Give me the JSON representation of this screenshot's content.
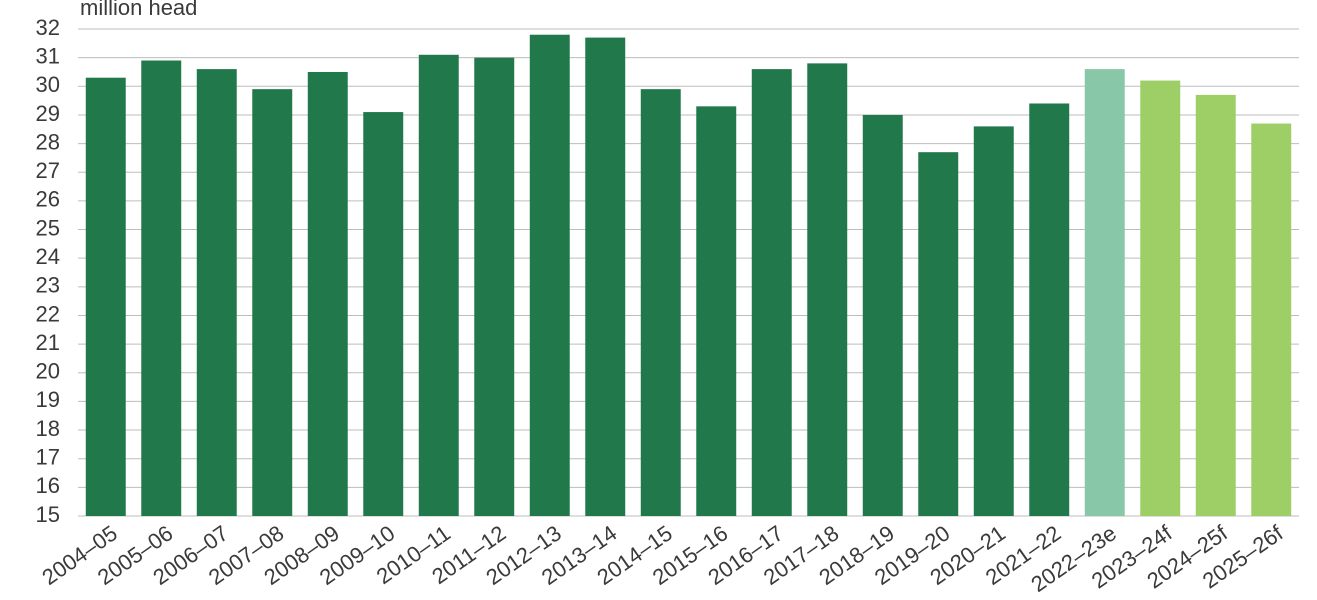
{
  "chart_data": {
    "type": "bar",
    "y_label": "million head",
    "categories": [
      "2004–05",
      "2005–06",
      "2006–07",
      "2007–08",
      "2008–09",
      "2009–10",
      "2010–11",
      "2011–12",
      "2012–13",
      "2013–14",
      "2014–15",
      "2015–16",
      "2016–17",
      "2017–18",
      "2018–19",
      "2019–20",
      "2020–21",
      "2021–22",
      "2022–23e",
      "2023–24f",
      "2024–25f",
      "2025–26f"
    ],
    "values": [
      30.3,
      30.9,
      30.6,
      29.9,
      30.5,
      29.1,
      31.1,
      31.0,
      31.8,
      31.7,
      29.9,
      29.3,
      30.6,
      30.8,
      29.0,
      27.7,
      28.6,
      29.4,
      30.6,
      30.2,
      29.7,
      28.7
    ],
    "colors": [
      "#21784a",
      "#21784a",
      "#21784a",
      "#21784a",
      "#21784a",
      "#21784a",
      "#21784a",
      "#21784a",
      "#21784a",
      "#21784a",
      "#21784a",
      "#21784a",
      "#21784a",
      "#21784a",
      "#21784a",
      "#21784a",
      "#21784a",
      "#21784a",
      "#88c8a8",
      "#9dcf66",
      "#9dcf66",
      "#9dcf66"
    ],
    "ylim": [
      15,
      32
    ],
    "yticks": [
      15,
      16,
      17,
      18,
      19,
      20,
      21,
      22,
      23,
      24,
      25,
      26,
      27,
      28,
      29,
      30,
      31,
      32
    ],
    "grid": true
  }
}
